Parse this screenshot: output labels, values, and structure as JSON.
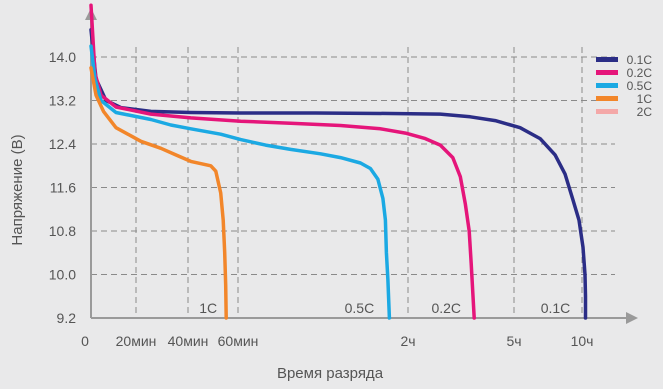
{
  "chart_data": {
    "type": "line",
    "xlabel": "Время разряда",
    "ylabel": "Напряжение (В)",
    "y_ticks": [
      "14.0",
      "13.2",
      "12.4",
      "11.6",
      "10.8",
      "10.0",
      "9.2"
    ],
    "y_tick_values": [
      14.0,
      13.2,
      12.4,
      11.6,
      10.8,
      10.0,
      9.2
    ],
    "ylim": [
      9.2,
      14.0
    ],
    "x_ticks": [
      "0",
      "20мин",
      "40мин",
      "60мин",
      "2ч",
      "5ч",
      "10ч"
    ],
    "grid": true,
    "legend_position": "top-right",
    "series": [
      {
        "name": "0.1C",
        "color": "#2b2d86",
        "end_label": "0.1C",
        "points": [
          [
            0,
            14.5
          ],
          [
            0.01,
            13.6
          ],
          [
            0.03,
            13.2
          ],
          [
            0.06,
            13.07
          ],
          [
            0.12,
            13.0
          ],
          [
            0.2,
            12.98
          ],
          [
            0.3,
            12.97
          ],
          [
            0.45,
            12.97
          ],
          [
            0.6,
            12.96
          ],
          [
            0.7,
            12.95
          ],
          [
            0.76,
            12.9
          ],
          [
            0.81,
            12.83
          ],
          [
            0.86,
            12.7
          ],
          [
            0.9,
            12.5
          ],
          [
            0.93,
            12.2
          ],
          [
            0.95,
            11.85
          ],
          [
            0.965,
            11.4
          ],
          [
            0.978,
            11.0
          ],
          [
            0.986,
            10.5
          ],
          [
            0.99,
            10.0
          ],
          [
            0.991,
            9.6
          ],
          [
            0.991,
            9.2
          ]
        ]
      },
      {
        "name": "0.2C",
        "color": "#e5157a",
        "end_label": "0.2C",
        "points": [
          [
            0,
            14.95
          ],
          [
            0.008,
            13.7
          ],
          [
            0.02,
            13.3
          ],
          [
            0.05,
            13.08
          ],
          [
            0.12,
            12.95
          ],
          [
            0.2,
            12.88
          ],
          [
            0.3,
            12.82
          ],
          [
            0.4,
            12.78
          ],
          [
            0.5,
            12.74
          ],
          [
            0.58,
            12.68
          ],
          [
            0.63,
            12.6
          ],
          [
            0.67,
            12.5
          ],
          [
            0.7,
            12.38
          ],
          [
            0.725,
            12.15
          ],
          [
            0.74,
            11.8
          ],
          [
            0.75,
            11.3
          ],
          [
            0.758,
            10.8
          ],
          [
            0.762,
            10.2
          ],
          [
            0.765,
            9.7
          ],
          [
            0.768,
            9.2
          ]
        ]
      },
      {
        "name": "0.5C",
        "color": "#1ba9e3",
        "end_label": "0.5C",
        "points": [
          [
            0,
            14.2
          ],
          [
            0.008,
            13.6
          ],
          [
            0.02,
            13.2
          ],
          [
            0.05,
            12.98
          ],
          [
            0.12,
            12.85
          ],
          [
            0.16,
            12.75
          ],
          [
            0.2,
            12.68
          ],
          [
            0.26,
            12.58
          ],
          [
            0.3,
            12.48
          ],
          [
            0.35,
            12.38
          ],
          [
            0.4,
            12.3
          ],
          [
            0.46,
            12.22
          ],
          [
            0.5,
            12.15
          ],
          [
            0.54,
            12.05
          ],
          [
            0.56,
            11.95
          ],
          [
            0.575,
            11.75
          ],
          [
            0.585,
            11.4
          ],
          [
            0.59,
            11.0
          ],
          [
            0.592,
            10.4
          ],
          [
            0.595,
            9.9
          ],
          [
            0.598,
            9.2
          ]
        ]
      },
      {
        "name": "1C",
        "color": "#f2862a",
        "end_label": "1C",
        "points": [
          [
            0,
            13.8
          ],
          [
            0.01,
            13.3
          ],
          [
            0.025,
            13.0
          ],
          [
            0.05,
            12.7
          ],
          [
            0.08,
            12.55
          ],
          [
            0.1,
            12.45
          ],
          [
            0.14,
            12.32
          ],
          [
            0.17,
            12.2
          ],
          [
            0.2,
            12.08
          ],
          [
            0.24,
            12.0
          ],
          [
            0.25,
            11.9
          ],
          [
            0.26,
            11.5
          ],
          [
            0.265,
            11.0
          ],
          [
            0.268,
            10.4
          ],
          [
            0.27,
            9.8
          ],
          [
            0.271,
            9.2
          ]
        ]
      },
      {
        "name": "2C",
        "color": "#f4a8a8",
        "end_label": "",
        "points": []
      }
    ]
  }
}
